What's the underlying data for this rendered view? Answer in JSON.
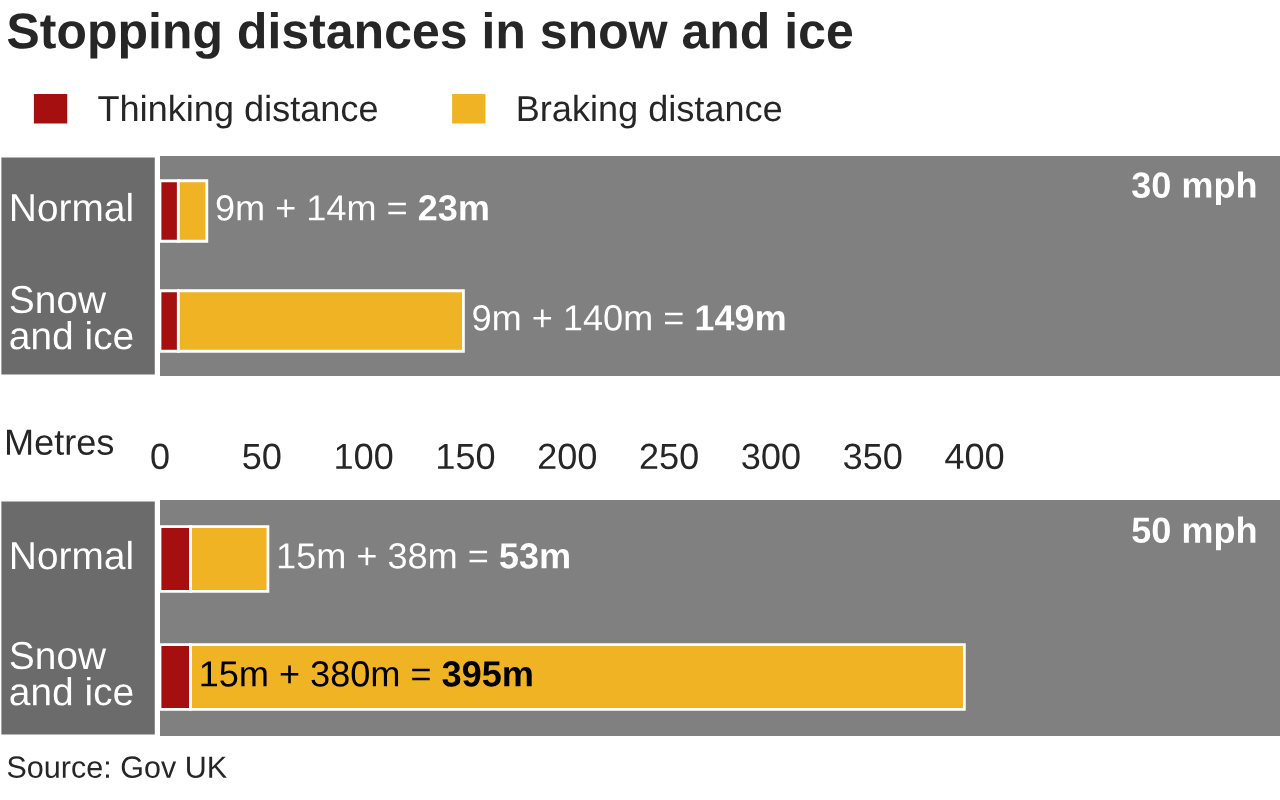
{
  "chart_data": [
    {
      "type": "bar",
      "orientation": "horizontal",
      "stacked": true,
      "title": "Stopping distances in snow and ice",
      "categories": [
        "Normal",
        "Snow\nand ice"
      ],
      "series": [
        {
          "name": "Thinking distance",
          "color": "#a50f0f",
          "values": [
            9,
            9
          ]
        },
        {
          "name": "Braking distance",
          "color": "#f0b323",
          "values": [
            14,
            140
          ]
        }
      ],
      "totals": [
        "9m + 14m = 23m",
        "9m + 140m = 149m"
      ],
      "xlabel": "Metres",
      "xlim": [
        0,
        550
      ],
      "xticks": [
        0,
        50,
        100,
        150,
        200,
        250,
        300,
        350,
        400
      ],
      "legend": "top left",
      "annotations": [
        "30 mph"
      ]
    },
    {
      "type": "bar",
      "orientation": "horizontal",
      "stacked": true,
      "categories": [
        "Normal",
        "Snow\nand ice"
      ],
      "series": [
        {
          "color": "#a50f0f",
          "values": [
            15,
            15
          ]
        },
        {
          "color": "#f0b323",
          "values": [
            38,
            380
          ]
        }
      ],
      "totals": [
        "15m + 38m = 53m",
        "15m + 380m = 395m"
      ],
      "xlim": [
        0,
        550
      ],
      "xticks": [
        0,
        50,
        100,
        150,
        200,
        250,
        300,
        350,
        400
      ],
      "tick_labels": "y",
      "annotations": [
        "50 mph",
        "Source: Gov UK"
      ]
    }
  ]
}
